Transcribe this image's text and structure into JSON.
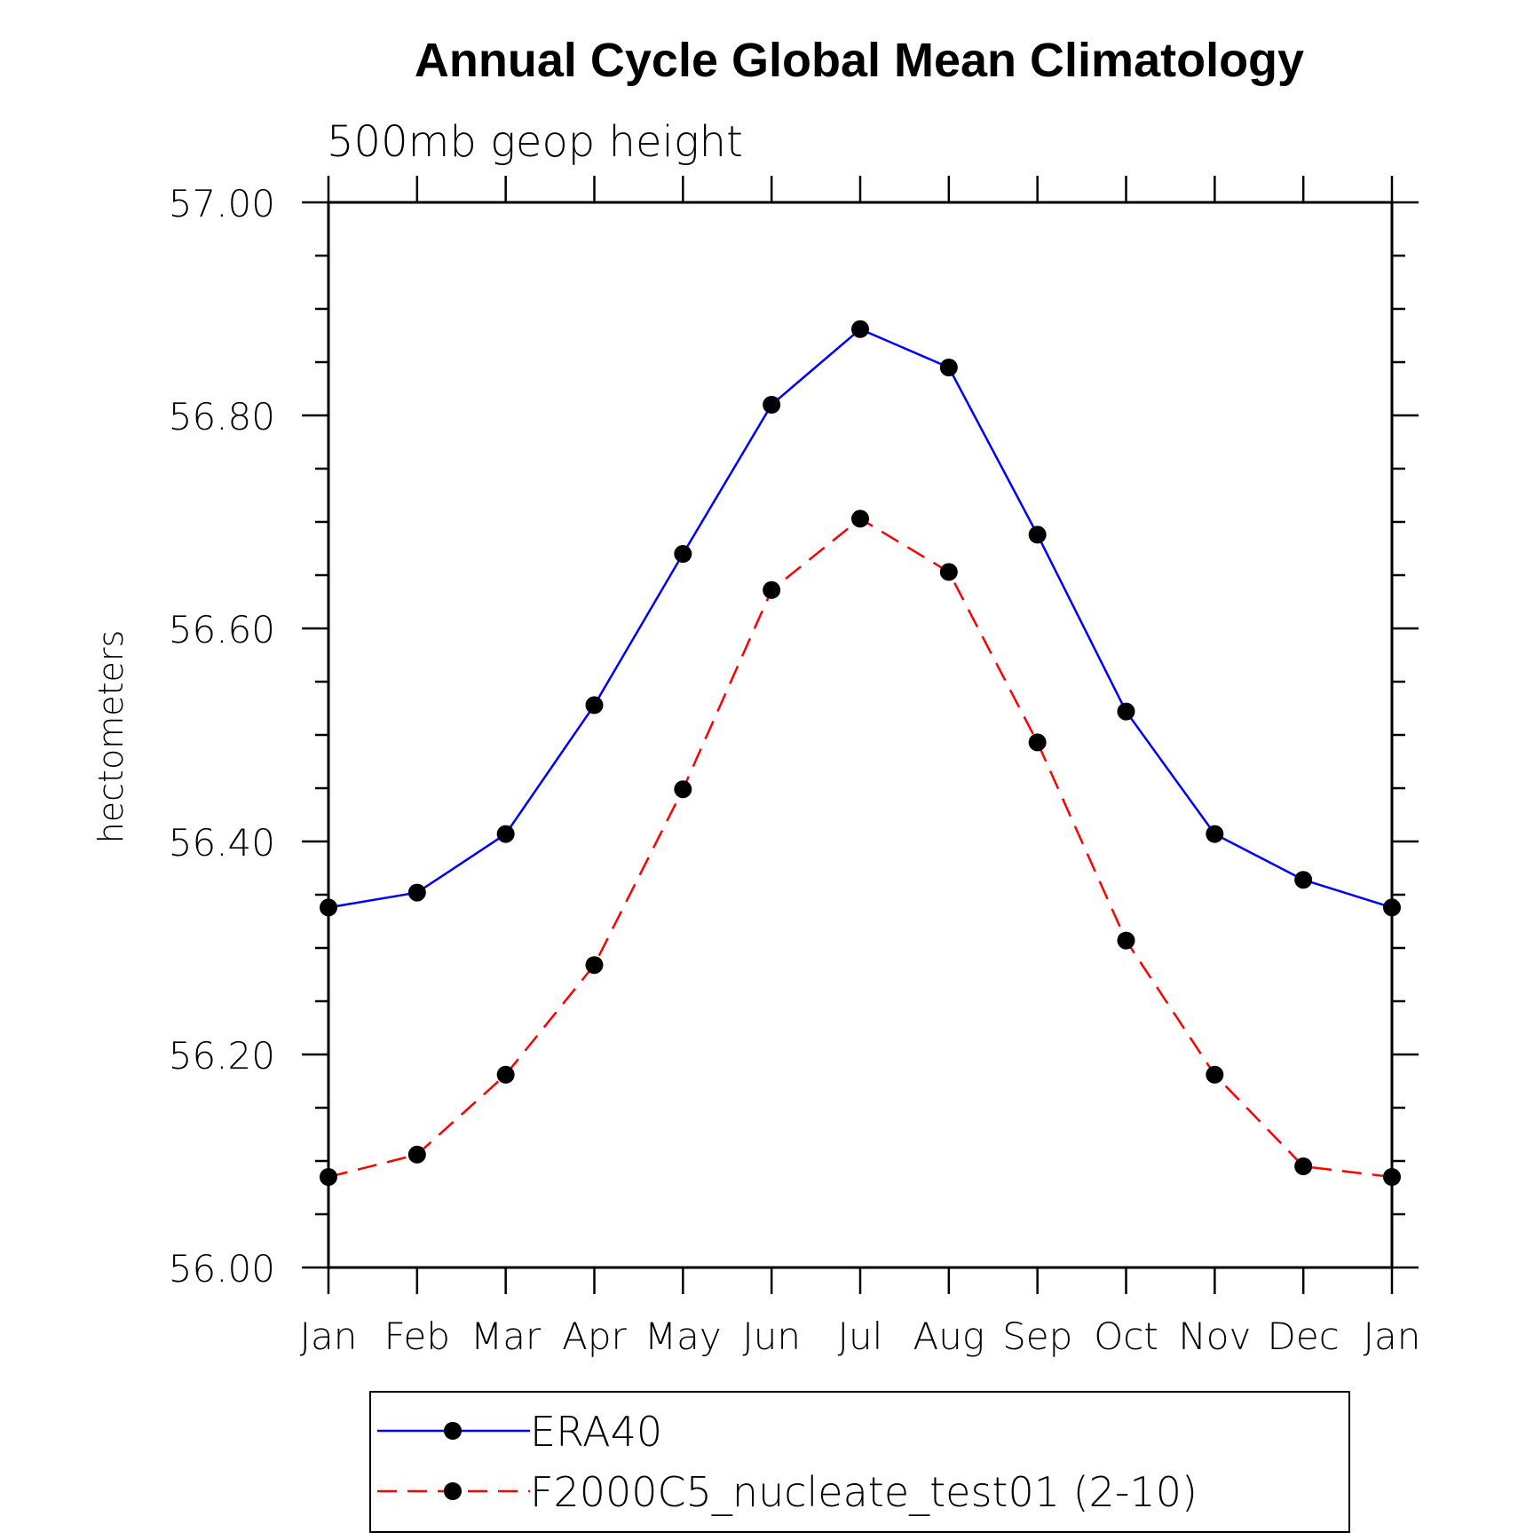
{
  "chart_data": {
    "type": "line",
    "title": "Annual Cycle Global Mean Climatology",
    "subtitle": "500mb geop height",
    "ylabel": "hectometers",
    "xlabel": "",
    "categories": [
      "Jan",
      "Feb",
      "Mar",
      "Apr",
      "May",
      "Jun",
      "Jul",
      "Aug",
      "Sep",
      "Oct",
      "Nov",
      "Dec",
      "Jan"
    ],
    "ylim": [
      56.0,
      57.0
    ],
    "y_major_ticks": [
      "56.00",
      "56.20",
      "56.40",
      "56.60",
      "56.80",
      "57.00"
    ],
    "y_minor_step": 0.05,
    "grid": false,
    "legend_position": "bottom",
    "series": [
      {
        "name": "ERA40",
        "color": "#0000ff",
        "line_style": "solid",
        "marker": "filled-circle",
        "values": [
          56.338,
          56.352,
          56.407,
          56.528,
          56.67,
          56.81,
          56.881,
          56.845,
          56.688,
          56.522,
          56.407,
          56.364,
          56.338
        ]
      },
      {
        "name": "F2000C5_nucleate_test01 (2-10)",
        "color": "#ff0000",
        "line_style": "dashed",
        "marker": "filled-circle",
        "values": [
          56.085,
          56.106,
          56.181,
          56.284,
          56.449,
          56.636,
          56.703,
          56.653,
          56.493,
          56.307,
          56.181,
          56.095,
          56.085
        ]
      }
    ]
  }
}
